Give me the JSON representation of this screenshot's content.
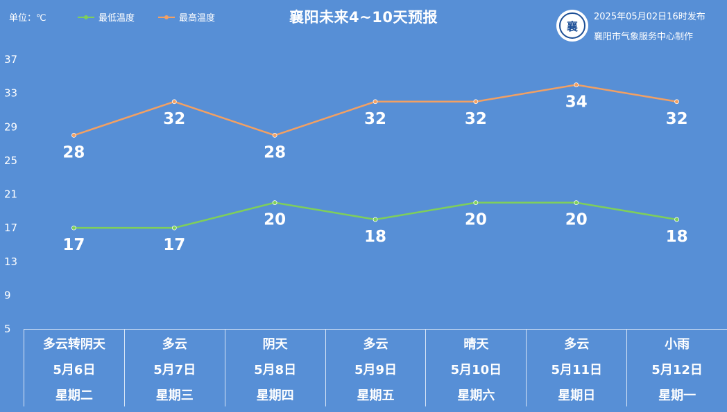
{
  "header": {
    "unit": "单位：℃",
    "title": "襄阳未来4~10天预报",
    "publish_time": "2025年05月02日16时发布",
    "producer": "襄阳市气象服务中心制作",
    "logo_text": "襄"
  },
  "colors": {
    "background": "#578fd6",
    "min_line": "#7fcf5a",
    "max_line": "#f2a063"
  },
  "chart_data": {
    "type": "line",
    "x": [
      "5月6日",
      "5月7日",
      "5月8日",
      "5月9日",
      "5月10日",
      "5月11日",
      "5月12日"
    ],
    "ylim": [
      5,
      37
    ],
    "yticks": [
      5,
      9,
      13,
      17,
      21,
      25,
      29,
      33,
      37
    ],
    "legend": "top-left",
    "series": [
      {
        "name": "最低温度",
        "values": [
          17,
          17,
          20,
          18,
          20,
          20,
          18
        ]
      },
      {
        "name": "最高温度",
        "values": [
          28,
          32,
          28,
          32,
          32,
          34,
          32
        ]
      }
    ]
  },
  "forecast": [
    {
      "weather": "多云转阴天",
      "date": "5月6日",
      "weekday": "星期二"
    },
    {
      "weather": "多云",
      "date": "5月7日",
      "weekday": "星期三"
    },
    {
      "weather": "阴天",
      "date": "5月8日",
      "weekday": "星期四"
    },
    {
      "weather": "多云",
      "date": "5月9日",
      "weekday": "星期五"
    },
    {
      "weather": "晴天",
      "date": "5月10日",
      "weekday": "星期六"
    },
    {
      "weather": "多云",
      "date": "5月11日",
      "weekday": "星期日"
    },
    {
      "weather": "小雨",
      "date": "5月12日",
      "weekday": "星期一"
    }
  ]
}
